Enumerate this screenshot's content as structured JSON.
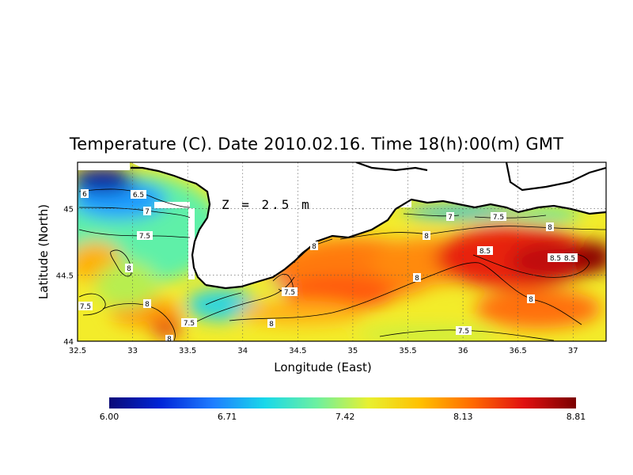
{
  "map": {
    "title": "Temperature (C). Date 2010.02.16. Time 18(h):00(m) GMT",
    "annotation": "Z = 2.5 m",
    "xlabel": "Longitude (East)",
    "ylabel": "Latitude (North)",
    "xlim": [
      32.5,
      37.3
    ],
    "ylim": [
      44.0,
      45.35
    ],
    "x_ticks": [
      "32.5",
      "33",
      "33.5",
      "34",
      "34.5",
      "35",
      "35.5",
      "36",
      "36.5",
      "37"
    ],
    "y_ticks": [
      "44",
      "44.5",
      "45"
    ],
    "contour_labels": [
      "6",
      "6.5",
      "7",
      "7.5",
      "8",
      "7.5",
      "8",
      "8",
      "7.5",
      "8",
      "7",
      "7.5",
      "8",
      "8",
      "8.5",
      "8.5",
      "8.5",
      "8",
      "7.5",
      "8",
      "7.5",
      "8"
    ],
    "colorbar": {
      "min": 6.0,
      "max": 8.81,
      "tick_labels": [
        "6.00",
        "6.71",
        "7.42",
        "8.13",
        "8.81"
      ],
      "colors": [
        "#0a0a78",
        "#0026d8",
        "#1e7dff",
        "#18d8ea",
        "#6cf0a0",
        "#e8f030",
        "#ffc000",
        "#ff6a00",
        "#e01010",
        "#7a0000"
      ]
    },
    "grid": "dotted"
  }
}
